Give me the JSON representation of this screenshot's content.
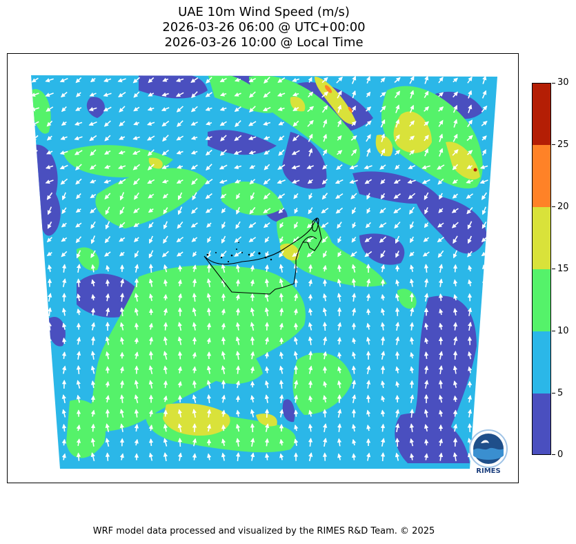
{
  "title": {
    "line1": "UAE 10m Wind Speed (m/s)",
    "line2": "2026-03-26 06:00 @ UTC+00:00",
    "line3": "2026-03-26 10:00 @ Local Time"
  },
  "map": {
    "variable": "10m wind speed",
    "units": "m/s",
    "overlay": "wind vectors (white arrows)",
    "boundary": "UAE outline (black)",
    "colors": {
      "0-5": "#4a4fbf",
      "5-10": "#2bb7e8",
      "10-15": "#55f26a",
      "15-20": "#d9e23a",
      "20-25": "#ff8227",
      "25-30": "#b41e05"
    }
  },
  "colorbar": {
    "ticks": [
      "30",
      "25",
      "20",
      "15",
      "10",
      "5",
      "0"
    ],
    "min": 0,
    "max": 30
  },
  "logo": {
    "text": "RIMES"
  },
  "footer": "WRF model data processed and visualized by the RIMES R&D Team. © 2025"
}
